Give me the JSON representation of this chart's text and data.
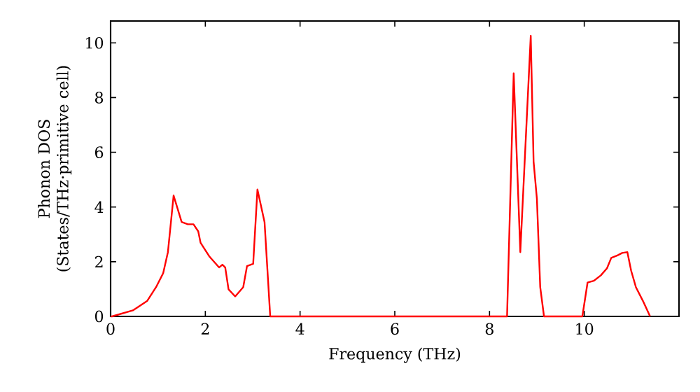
{
  "chart_data": {
    "type": "line",
    "xlabel": "Frequency (THz)",
    "ylabel": "Phonon DOS (States/THz·primitive cell)",
    "xlim": [
      0,
      12
    ],
    "ylim": [
      0,
      10.8
    ],
    "xticks": [
      0,
      2,
      4,
      6,
      8,
      10
    ],
    "yticks": [
      0,
      2,
      4,
      6,
      8,
      10
    ],
    "marker": "none",
    "line_style": "solid",
    "series": [
      {
        "color": "#ff0000",
        "x": [
          0,
          0.03,
          0.47,
          0.77,
          0.96,
          1.11,
          1.21,
          1.33,
          1.5,
          1.63,
          1.75,
          1.85,
          1.9,
          2.09,
          2.29,
          2.36,
          2.42,
          2.49,
          2.63,
          2.8,
          2.88,
          3.01,
          3.1,
          3.25,
          3.37,
          8.37,
          8.51,
          8.65,
          8.87,
          8.93,
          9.0,
          9.07,
          9.15,
          9.96,
          10.07,
          10.2,
          10.35,
          10.48,
          10.57,
          10.7,
          10.8,
          10.91,
          10.99,
          11.09,
          11.24,
          11.39
        ],
        "values": [
          0,
          0,
          0.22,
          0.56,
          1.07,
          1.58,
          2.35,
          4.42,
          3.45,
          3.37,
          3.37,
          3.11,
          2.69,
          2.18,
          1.79,
          1.89,
          1.79,
          0.99,
          0.73,
          1.07,
          1.84,
          1.92,
          4.64,
          3.45,
          0,
          0,
          8.89,
          2.35,
          10.26,
          5.66,
          4.3,
          1.07,
          0,
          0,
          1.24,
          1.3,
          1.5,
          1.76,
          2.14,
          2.23,
          2.32,
          2.35,
          1.67,
          1.07,
          0.56,
          0
        ]
      }
    ]
  }
}
